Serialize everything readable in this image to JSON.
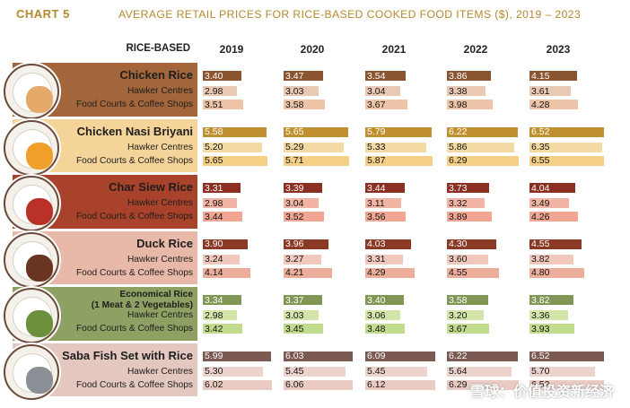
{
  "header": {
    "chart_no": "CHART 5",
    "title": "AVERAGE RETAIL PRICES FOR RICE-BASED COOKED FOOD ITEMS ($), 2019 – 2023"
  },
  "watermark": "雪球：价值投资新经济",
  "chart_data": {
    "type": "bar",
    "title": "AVERAGE RETAIL PRICES FOR RICE-BASED COOKED FOOD ITEMS ($), 2019 – 2023",
    "row_header": "RICE-BASED",
    "years": [
      "2019",
      "2020",
      "2021",
      "2022",
      "2023"
    ],
    "items": [
      {
        "name": "Chicken Rice",
        "band_color": "#a3663a",
        "rows": [
          {
            "label": "Chicken Rice",
            "values": [
              3.4,
              3.47,
              3.54,
              3.86,
              4.15
            ],
            "color": "#8a5530"
          },
          {
            "label": "Hawker Centres",
            "values": [
              2.98,
              3.03,
              3.04,
              3.38,
              3.61
            ],
            "color": "#e9c9b3"
          },
          {
            "label": "Food Courts & Coffee Shops",
            "values": [
              3.51,
              3.58,
              3.67,
              3.98,
              4.28
            ],
            "color": "#edc4a8"
          }
        ]
      },
      {
        "name": "Chicken Nasi Briyani",
        "band_color": "#f5d49a",
        "rows": [
          {
            "label": "Chicken Nasi Briyani",
            "values": [
              5.58,
              5.65,
              5.79,
              6.22,
              6.52
            ],
            "color": "#c08f2f"
          },
          {
            "label": "Hawker Centres",
            "values": [
              5.2,
              5.29,
              5.33,
              5.86,
              6.35
            ],
            "color": "#f3d9a3"
          },
          {
            "label": "Food Courts & Coffee Shops",
            "values": [
              5.65,
              5.71,
              5.87,
              6.29,
              6.55
            ],
            "color": "#f4cf86"
          }
        ]
      },
      {
        "name": "Char Siew Rice",
        "band_color": "#a8422a",
        "rows": [
          {
            "label": "Char Siew Rice",
            "values": [
              3.31,
              3.39,
              3.44,
              3.73,
              4.04
            ],
            "color": "#8a2f22"
          },
          {
            "label": "Hawker Centres",
            "values": [
              2.98,
              3.04,
              3.11,
              3.32,
              3.49
            ],
            "color": "#f2b5a5"
          },
          {
            "label": "Food Courts & Coffee Shops",
            "values": [
              3.44,
              3.52,
              3.56,
              3.89,
              4.26
            ],
            "color": "#f1a593"
          }
        ]
      },
      {
        "name": "Duck Rice",
        "band_color": "#e8b8a8",
        "rows": [
          {
            "label": "Duck Rice",
            "values": [
              3.9,
              3.96,
              4.03,
              4.3,
              4.55
            ],
            "color": "#8a3a24"
          },
          {
            "label": "Hawker Centres",
            "values": [
              3.24,
              3.27,
              3.31,
              3.6,
              3.82
            ],
            "color": "#f1c9bc"
          },
          {
            "label": "Food Courts & Coffee Shops",
            "values": [
              4.14,
              4.21,
              4.29,
              4.55,
              4.8
            ],
            "color": "#ecad9b"
          }
        ]
      },
      {
        "name": "Economical Rice (1 Meat & 2 Vegetables)",
        "name_lines": [
          "Economical Rice",
          "(1 Meat & 2 Vegetables)"
        ],
        "band_color": "#8ea163",
        "rows": [
          {
            "label": "Economical Rice (1 Meat & 2 Vegetables)",
            "values": [
              3.34,
              3.37,
              3.4,
              3.58,
              3.82
            ],
            "color": "#7f9655"
          },
          {
            "label": "Hawker Centres",
            "values": [
              2.98,
              3.03,
              3.06,
              3.2,
              3.36
            ],
            "color": "#d3e5a8"
          },
          {
            "label": "Food Courts & Coffee Shops",
            "values": [
              3.42,
              3.45,
              3.48,
              3.67,
              3.93
            ],
            "color": "#c2dc8d"
          }
        ]
      },
      {
        "name": "Saba Fish Set with Rice",
        "band_color": "#e4c7bf",
        "rows": [
          {
            "label": "Saba Fish Set with Rice",
            "values": [
              5.99,
              6.03,
              6.09,
              6.22,
              6.52
            ],
            "color": "#7a5a52"
          },
          {
            "label": "Hawker Centres",
            "values": [
              5.3,
              5.45,
              5.45,
              5.64,
              5.7
            ],
            "color": "#ecd3cb"
          },
          {
            "label": "Food Courts & Coffee Shops",
            "values": [
              6.02,
              6.06,
              6.12,
              6.29,
              6.52
            ],
            "color": "#e9cbc3"
          }
        ]
      }
    ]
  }
}
